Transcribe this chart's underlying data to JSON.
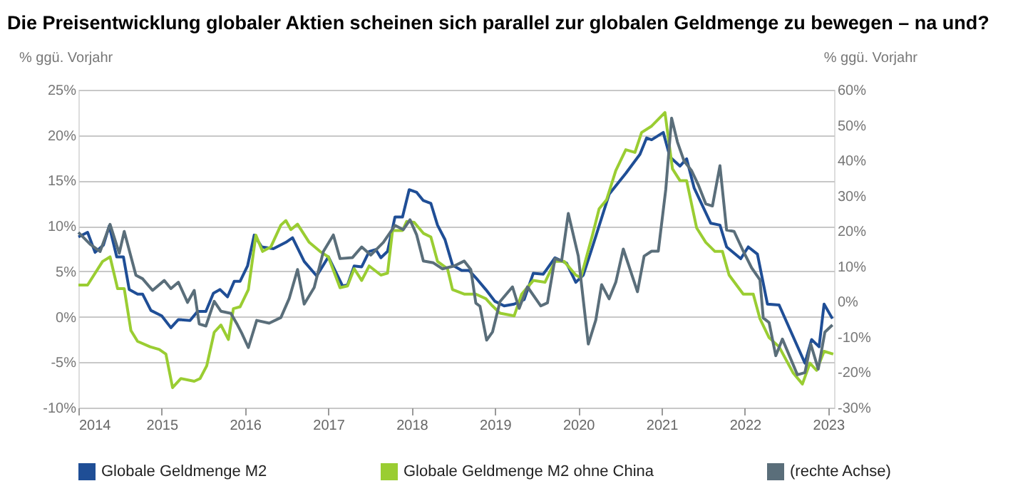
{
  "chart_data": {
    "type": "line",
    "title": "Die Preisentwicklung globaler Aktien scheinen sich parallel zur globalen Geldmenge zu bewegen – na und?",
    "ylabel": "% ggü. Vorjahr",
    "y2label": "% ggü. Vorjahr",
    "xlim": [
      2014,
      2023.07
    ],
    "xticks": [
      2014,
      2015,
      2016,
      2017,
      2018,
      2019,
      2020,
      2021,
      2022,
      2023
    ],
    "ylim": [
      -10,
      25
    ],
    "yticks": [
      {
        "value": -10,
        "label": "-10%"
      },
      {
        "value": -5,
        "label": "-5%"
      },
      {
        "value": 0,
        "label": "0%"
      },
      {
        "value": 5,
        "label": "5%"
      },
      {
        "value": 10,
        "label": "10%"
      },
      {
        "value": 15,
        "label": "15%"
      },
      {
        "value": 20,
        "label": "20%"
      },
      {
        "value": 25,
        "label": "25%"
      }
    ],
    "y2lim": [
      -30,
      60
    ],
    "y2ticks": [
      {
        "value": -30,
        "label": "-30%"
      },
      {
        "value": -20,
        "label": "-20%"
      },
      {
        "value": -10,
        "label": "-10%"
      },
      {
        "value": 0,
        "label": "0%"
      },
      {
        "value": 10,
        "label": "10%"
      },
      {
        "value": 20,
        "label": "20%"
      },
      {
        "value": 30,
        "label": "30%"
      },
      {
        "value": 40,
        "label": "40%"
      },
      {
        "value": 50,
        "label": "50%"
      },
      {
        "value": 60,
        "label": "60%"
      }
    ],
    "grid": "y",
    "legend": "bottom",
    "marker": "none",
    "line_style": "solid",
    "series": [
      {
        "name": "Globale Geldmenge M2",
        "color": "#1f4e96",
        "x": [
          2014.0,
          2014.11,
          2014.2,
          2014.3,
          2014.37,
          2014.46,
          2014.54,
          2014.61,
          2014.71,
          2014.77,
          2014.87,
          2015.0,
          2015.11,
          2015.2,
          2015.34,
          2015.43,
          2015.53,
          2015.62,
          2015.7,
          2015.79,
          2015.87,
          2015.94,
          2016.03,
          2016.11,
          2016.2,
          2016.34,
          2016.49,
          2016.57,
          2016.71,
          2016.86,
          2017.0,
          2017.17,
          2017.23,
          2017.31,
          2017.4,
          2017.49,
          2017.57,
          2017.63,
          2017.71,
          2017.8,
          2017.89,
          2017.97,
          2018.06,
          2018.14,
          2018.23,
          2018.31,
          2018.4,
          2018.49,
          2018.6,
          2018.69,
          2018.77,
          2018.89,
          2019.0,
          2019.11,
          2019.23,
          2019.35,
          2019.46,
          2019.58,
          2019.72,
          2019.86,
          2019.97,
          2020.06,
          2020.17,
          2020.37,
          2020.57,
          2020.74,
          2020.82,
          2020.88,
          2021.02,
          2021.1,
          2021.22,
          2021.3,
          2021.39,
          2021.59,
          2021.7,
          2021.78,
          2021.95,
          2022.04,
          2022.15,
          2022.27,
          2022.41,
          2022.72,
          2022.8,
          2022.89,
          2022.95,
          2023.05
        ],
        "values": [
          8.8,
          9.3,
          7.1,
          7.9,
          10.0,
          6.6,
          6.6,
          3.0,
          2.5,
          2.5,
          0.7,
          0.1,
          -1.2,
          -0.3,
          -0.4,
          0.6,
          0.6,
          2.6,
          3.0,
          2.2,
          3.9,
          3.9,
          5.6,
          9.0,
          7.7,
          7.5,
          8.2,
          8.7,
          6.1,
          4.5,
          6.6,
          3.4,
          3.5,
          5.6,
          5.5,
          7.2,
          7.4,
          6.5,
          7.2,
          11.0,
          11.0,
          14.0,
          13.7,
          12.8,
          12.5,
          10.1,
          8.5,
          5.7,
          5.1,
          5.1,
          4.3,
          3.0,
          1.7,
          1.2,
          1.4,
          1.9,
          4.8,
          4.7,
          6.5,
          5.9,
          3.8,
          4.6,
          7.7,
          13.5,
          15.8,
          17.9,
          19.7,
          19.5,
          20.3,
          17.6,
          16.6,
          17.4,
          14.2,
          10.3,
          10.1,
          7.7,
          6.4,
          7.7,
          6.9,
          1.4,
          1.3,
          -5.1,
          -2.5,
          -3.3,
          1.4,
          -0.2
        ]
      },
      {
        "name": "Globale Geldmenge M2 ohne China",
        "color": "#9acd32",
        "x": [
          2014.0,
          2014.11,
          2014.29,
          2014.38,
          2014.47,
          2014.55,
          2014.63,
          2014.71,
          2014.86,
          2014.97,
          2015.05,
          2015.13,
          2015.23,
          2015.39,
          2015.46,
          2015.54,
          2015.63,
          2015.71,
          2015.8,
          2015.86,
          2015.94,
          2016.04,
          2016.13,
          2016.21,
          2016.31,
          2016.43,
          2016.49,
          2016.55,
          2016.63,
          2016.77,
          2016.9,
          2017.0,
          2017.14,
          2017.23,
          2017.31,
          2017.4,
          2017.49,
          2017.63,
          2017.71,
          2017.77,
          2017.89,
          2017.94,
          2018.03,
          2018.14,
          2018.23,
          2018.31,
          2018.43,
          2018.49,
          2018.63,
          2018.77,
          2018.89,
          2018.97,
          2019.06,
          2019.23,
          2019.32,
          2019.46,
          2019.6,
          2019.72,
          2019.83,
          2019.97,
          2020.03,
          2020.17,
          2020.25,
          2020.34,
          2020.45,
          2020.57,
          2020.68,
          2020.76,
          2020.88,
          2021.04,
          2021.13,
          2021.22,
          2021.3,
          2021.42,
          2021.53,
          2021.64,
          2021.73,
          2021.81,
          2021.98,
          2022.1,
          2022.18,
          2022.29,
          2022.41,
          2022.58,
          2022.69,
          2022.78,
          2022.86,
          2022.95,
          2023.06
        ],
        "values": [
          3.5,
          3.5,
          6.1,
          6.6,
          3.1,
          3.1,
          -1.5,
          -2.7,
          -3.3,
          -3.6,
          -4.1,
          -7.8,
          -6.8,
          -7.1,
          -6.8,
          -5.4,
          -1.7,
          -0.9,
          -2.5,
          0.9,
          1.1,
          3.0,
          9.0,
          7.2,
          7.7,
          10.1,
          10.6,
          9.6,
          10.2,
          8.2,
          7.2,
          6.6,
          3.2,
          3.4,
          5.3,
          4.0,
          5.6,
          4.6,
          4.8,
          9.5,
          9.5,
          10.5,
          10.4,
          9.2,
          8.8,
          6.1,
          5.3,
          3.0,
          2.5,
          2.5,
          2.0,
          1.2,
          0.4,
          0.1,
          2.5,
          4.0,
          3.8,
          6.1,
          6.1,
          4.6,
          4.3,
          9.0,
          11.9,
          12.9,
          16.1,
          18.4,
          18.1,
          20.3,
          21.0,
          22.5,
          16.3,
          15.0,
          15.0,
          9.8,
          8.2,
          7.2,
          7.2,
          4.6,
          2.5,
          2.5,
          -0.2,
          -2.3,
          -3.3,
          -6.2,
          -7.4,
          -5.1,
          -5.9,
          -3.8,
          -4.1
        ]
      },
      {
        "name": "(rechte Achse)",
        "color": "#5a6e7a",
        "axis": "y2",
        "x": [
          2014.0,
          2014.14,
          2014.26,
          2014.38,
          2014.49,
          2014.55,
          2014.69,
          2014.77,
          2014.89,
          2015.03,
          2015.11,
          2015.2,
          2015.31,
          2015.39,
          2015.45,
          2015.53,
          2015.63,
          2015.71,
          2015.83,
          2015.91,
          2015.96,
          2016.04,
          2016.14,
          2016.29,
          2016.43,
          2016.53,
          2016.63,
          2016.71,
          2016.83,
          2016.94,
          2017.06,
          2017.14,
          2017.29,
          2017.4,
          2017.51,
          2017.66,
          2017.8,
          2017.9,
          2017.98,
          2018.06,
          2018.14,
          2018.26,
          2018.37,
          2018.51,
          2018.63,
          2018.71,
          2018.77,
          2018.82,
          2018.9,
          2018.97,
          2019.06,
          2019.21,
          2019.29,
          2019.39,
          2019.55,
          2019.63,
          2019.72,
          2019.8,
          2019.88,
          2020.0,
          2020.12,
          2020.21,
          2020.28,
          2020.37,
          2020.45,
          2020.54,
          2020.71,
          2020.79,
          2020.88,
          2020.96,
          2021.05,
          2021.12,
          2021.19,
          2021.27,
          2021.36,
          2021.44,
          2021.53,
          2021.61,
          2021.7,
          2021.78,
          2021.87,
          2021.98,
          2022.08,
          2022.18,
          2022.22,
          2022.29,
          2022.37,
          2022.45,
          2022.63,
          2022.72,
          2022.79,
          2022.88,
          2022.96,
          2023.05
        ],
        "values": [
          19.6,
          16.3,
          14.2,
          21.9,
          13.7,
          19.9,
          7.5,
          6.5,
          3.2,
          6.0,
          3.7,
          5.5,
          -0.2,
          3.2,
          -6.3,
          -6.9,
          0.1,
          -2.7,
          -3.3,
          -6.6,
          -8.9,
          -13.0,
          -5.3,
          -6.1,
          -4.5,
          0.9,
          9.1,
          -0.7,
          4.0,
          14.2,
          18.9,
          12.2,
          12.5,
          15.5,
          13.2,
          16.8,
          21.6,
          20.4,
          23.2,
          18.9,
          11.5,
          11.0,
          9.3,
          10.1,
          11.5,
          9.1,
          -0.4,
          -1.3,
          -10.9,
          -8.6,
          0.0,
          4.2,
          -1.9,
          4.2,
          -1.2,
          -0.3,
          12.2,
          11.6,
          25.0,
          12.9,
          -12.0,
          -5.2,
          4.8,
          0.8,
          5.5,
          14.9,
          2.8,
          12.9,
          14.3,
          14.3,
          31.8,
          52.0,
          45.2,
          39.8,
          37.1,
          33.1,
          27.7,
          27.1,
          38.5,
          20.3,
          19.9,
          14.3,
          9.6,
          6.2,
          -4.6,
          -5.9,
          -15.3,
          -10.6,
          -20.7,
          -20.1,
          -12.0,
          -19.1,
          -8.6,
          -6.6
        ]
      }
    ]
  }
}
